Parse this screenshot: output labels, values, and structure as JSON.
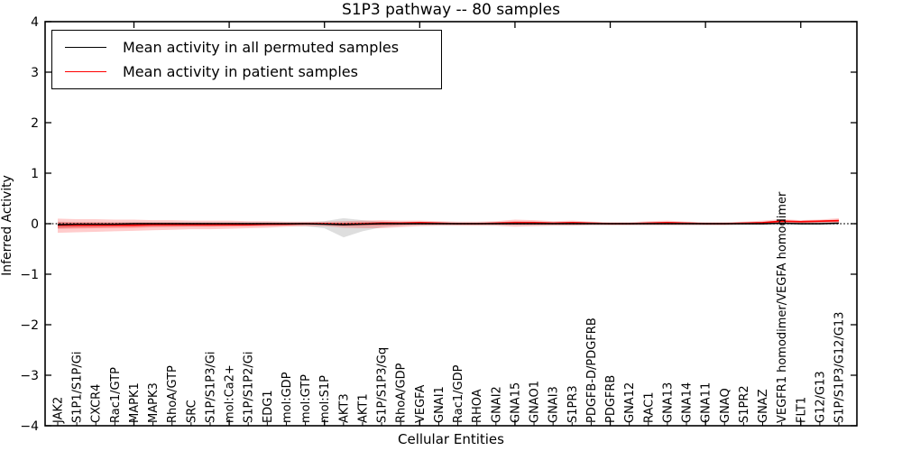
{
  "figure": {
    "background": "#ffffff"
  },
  "chart_data": {
    "type": "line",
    "title": "S1P3 pathway -- 80 samples",
    "xlabel": "Cellular Entities",
    "ylabel": "Inferred Activity",
    "ylim": [
      -4,
      4
    ],
    "yticks": [
      -4,
      -3,
      -2,
      -1,
      0,
      1,
      2,
      3,
      4
    ],
    "grid": false,
    "x_major_tick_indices": [
      4,
      9,
      14,
      19,
      24,
      29,
      34,
      39
    ],
    "zero_line": {
      "y": 0,
      "style": "dotted",
      "color": "#000000"
    },
    "legend": {
      "position": "upper left",
      "items": [
        {
          "label": "Mean activity in all permuted samples",
          "color": "#000000"
        },
        {
          "label": "Mean activity in patient samples",
          "color": "#ff0000"
        }
      ]
    },
    "categories": [
      "JAK2",
      "S1P1/S1P/Gi",
      "CXCR4",
      "Rac1/GTP",
      "MAPK1",
      "MAPK3",
      "RhoA/GTP",
      "SRC",
      "S1P/S1P3/Gi",
      "mol:Ca2+",
      "S1P/S1P2/Gi",
      "EDG1",
      "mol:GDP",
      "mol:GTP",
      "mol:S1P",
      "AKT3",
      "AKT1",
      "S1P/S1P3/Gq",
      "RhoA/GDP",
      "VEGFA",
      "GNAI1",
      "Rac1/GDP",
      "RHOA",
      "GNAI2",
      "GNA15",
      "GNAO1",
      "GNAI3",
      "S1PR3",
      "PDGFB-D/PDGFRB",
      "PDGFRB",
      "GNA12",
      "RAC1",
      "GNA13",
      "GNA14",
      "GNA11",
      "GNAQ",
      "S1PR2",
      "GNAZ",
      "VEGFR1 homodimer/VEGFA homodimer",
      "FLT1",
      "G12/G13",
      "S1P/S1P3/G12/G13"
    ],
    "series": [
      {
        "name": "Mean activity in all permuted samples",
        "role": "permuted",
        "line_color": "#000000",
        "band_color": "#000000",
        "band_opacity": 0.13,
        "mean": [
          -0.02,
          -0.01,
          -0.01,
          -0.01,
          0,
          0,
          0,
          0,
          0,
          0,
          0,
          0,
          0,
          0,
          -0.01,
          -0.02,
          -0.01,
          0,
          0,
          0,
          0,
          0,
          0,
          0,
          0,
          0,
          0,
          0,
          0,
          0,
          0,
          0,
          0,
          0,
          0,
          0,
          0,
          0,
          0.01,
          0,
          0,
          0.01
        ],
        "band_upper": [
          0.04,
          0.03,
          0.03,
          0.03,
          0.03,
          0.03,
          0.03,
          0.03,
          0.03,
          0.03,
          0.03,
          0.03,
          0.03,
          0.03,
          0.05,
          0.11,
          0.07,
          0.04,
          0.03,
          0.03,
          0.02,
          0.02,
          0.02,
          0.02,
          0.02,
          0.02,
          0.02,
          0.02,
          0.02,
          0.02,
          0.02,
          0.02,
          0.02,
          0.02,
          0.02,
          0.02,
          0.02,
          0.02,
          0.03,
          0.03,
          0.03,
          0.04
        ],
        "band_lower": [
          -0.09,
          -0.07,
          -0.06,
          -0.05,
          -0.05,
          -0.05,
          -0.05,
          -0.05,
          -0.05,
          -0.04,
          -0.04,
          -0.04,
          -0.04,
          -0.05,
          -0.09,
          -0.27,
          -0.15,
          -0.07,
          -0.04,
          -0.03,
          -0.03,
          -0.03,
          -0.03,
          -0.03,
          -0.03,
          -0.03,
          -0.03,
          -0.03,
          -0.03,
          -0.03,
          -0.03,
          -0.03,
          -0.03,
          -0.03,
          -0.03,
          -0.03,
          -0.03,
          -0.03,
          -0.03,
          -0.03,
          -0.03,
          -0.02
        ]
      },
      {
        "name": "Mean activity in patient samples",
        "role": "patient",
        "line_color": "#ff0000",
        "band_color": "#ff0000",
        "band_opacity": 0.2,
        "band_inner_opacity": 0.3,
        "mean": [
          -0.03,
          -0.03,
          -0.03,
          -0.03,
          -0.03,
          -0.02,
          -0.02,
          -0.02,
          -0.02,
          -0.02,
          -0.02,
          -0.01,
          -0.01,
          0,
          0,
          -0.01,
          0,
          0.01,
          0.01,
          0.02,
          0.01,
          0,
          0,
          0.01,
          0.02,
          0.02,
          0.01,
          0.02,
          0.01,
          0,
          0,
          0.01,
          0.02,
          0.01,
          0,
          0,
          0.01,
          0.02,
          0.05,
          0.04,
          0.05,
          0.06
        ],
        "band_upper": [
          0.1,
          0.09,
          0.09,
          0.08,
          0.08,
          0.07,
          0.07,
          0.06,
          0.06,
          0.06,
          0.05,
          0.05,
          0.04,
          0.04,
          0.04,
          0.05,
          0.06,
          0.07,
          0.06,
          0.06,
          0.05,
          0.04,
          0.04,
          0.05,
          0.08,
          0.07,
          0.05,
          0.06,
          0.04,
          0.03,
          0.03,
          0.05,
          0.06,
          0.04,
          0.03,
          0.03,
          0.04,
          0.06,
          0.09,
          0.07,
          0.08,
          0.11
        ],
        "band_lower": [
          -0.18,
          -0.17,
          -0.16,
          -0.15,
          -0.14,
          -0.13,
          -0.12,
          -0.11,
          -0.11,
          -0.1,
          -0.09,
          -0.08,
          -0.06,
          -0.05,
          -0.05,
          -0.08,
          -0.09,
          -0.09,
          -0.07,
          -0.05,
          -0.04,
          -0.04,
          -0.04,
          -0.04,
          -0.06,
          -0.05,
          -0.04,
          -0.04,
          -0.03,
          -0.03,
          -0.03,
          -0.03,
          -0.03,
          -0.03,
          -0.03,
          -0.03,
          -0.02,
          -0.02,
          0,
          0,
          0.01,
          0.02
        ]
      }
    ]
  }
}
